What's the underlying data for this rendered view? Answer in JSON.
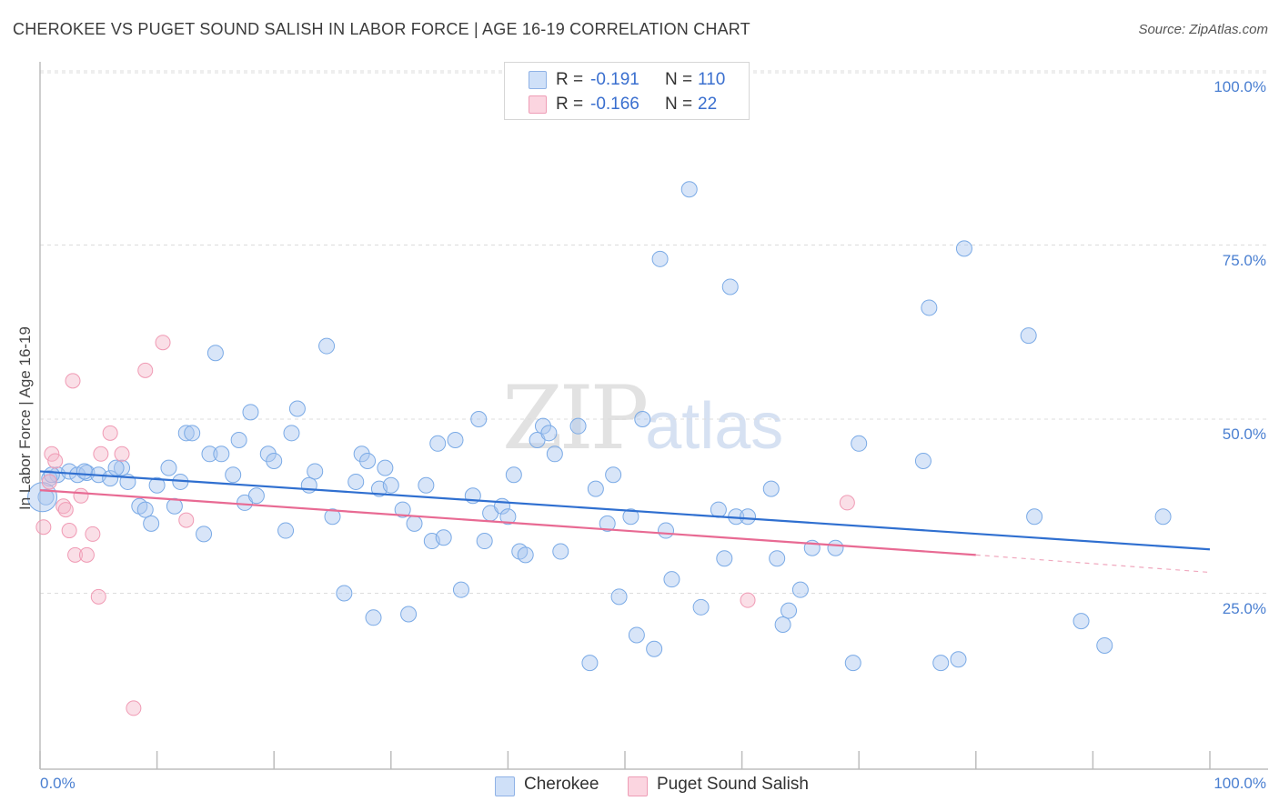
{
  "header": {
    "title": "CHEROKEE VS PUGET SOUND SALISH IN LABOR FORCE | AGE 16-19 CORRELATION CHART",
    "source": "Source: ZipAtlas.com"
  },
  "watermark": {
    "zip": "ZIP",
    "atlas": "atlas"
  },
  "legend": {
    "rows": [
      {
        "r_label": "R =",
        "r_value": "-0.191",
        "n_label": "N =",
        "n_value": "110",
        "color": "#a9c6f0"
      },
      {
        "r_label": "R =",
        "r_value": "-0.166",
        "n_label": "N =",
        "n_value": "22",
        "color": "#f5b8c9"
      }
    ]
  },
  "axes": {
    "ylabel": "In Labor Force | Age 16-19",
    "x_min_label": "0.0%",
    "x_max_label": "100.0%",
    "y_ticks": [
      "100.0%",
      "75.0%",
      "50.0%",
      "25.0%"
    ]
  },
  "bottom_legend": {
    "items": [
      {
        "label": "Cherokee",
        "color": "#a9c6f0"
      },
      {
        "label": "Puget Sound Salish",
        "color": "#f5b8c9"
      }
    ]
  },
  "chart_data": {
    "type": "scatter",
    "xlabel": "",
    "ylabel": "In Labor Force | Age 16-19",
    "xlim": [
      0,
      100
    ],
    "ylim": [
      0,
      100
    ],
    "grid": true,
    "legend_position": "top-center",
    "series": [
      {
        "name": "Cherokee",
        "color": "#7aaae6",
        "trend": {
          "x0": 0,
          "y0": 42.5,
          "x1": 100,
          "y1": 31.3
        },
        "points": [
          [
            0.5,
            38.8
          ],
          [
            1.5,
            42.0
          ],
          [
            2.5,
            42.5
          ],
          [
            3.2,
            42.0
          ],
          [
            4.0,
            42.3
          ],
          [
            5.0,
            42.0
          ],
          [
            6.0,
            41.5
          ],
          [
            7.0,
            43.0
          ],
          [
            7.5,
            41.0
          ],
          [
            8.5,
            37.5
          ],
          [
            9.0,
            37.0
          ],
          [
            9.5,
            35.0
          ],
          [
            10.0,
            40.5
          ],
          [
            11.0,
            43.0
          ],
          [
            11.5,
            37.5
          ],
          [
            12.0,
            41.0
          ],
          [
            12.5,
            48.0
          ],
          [
            13.0,
            48.0
          ],
          [
            14.0,
            33.5
          ],
          [
            14.5,
            45.0
          ],
          [
            15.0,
            59.5
          ],
          [
            15.5,
            45.0
          ],
          [
            16.5,
            42.0
          ],
          [
            17.0,
            47.0
          ],
          [
            17.5,
            38.0
          ],
          [
            18.0,
            51.0
          ],
          [
            18.5,
            39.0
          ],
          [
            19.5,
            45.0
          ],
          [
            20.0,
            44.0
          ],
          [
            21.0,
            34.0
          ],
          [
            21.5,
            48.0
          ],
          [
            22.0,
            51.5
          ],
          [
            23.0,
            40.5
          ],
          [
            23.5,
            42.5
          ],
          [
            24.5,
            60.5
          ],
          [
            25.0,
            36.0
          ],
          [
            26.0,
            25.0
          ],
          [
            27.0,
            41.0
          ],
          [
            27.5,
            45.0
          ],
          [
            28.0,
            44.0
          ],
          [
            28.5,
            21.5
          ],
          [
            29.0,
            40.0
          ],
          [
            29.5,
            43.0
          ],
          [
            30.0,
            40.5
          ],
          [
            31.0,
            37.0
          ],
          [
            31.5,
            22.0
          ],
          [
            32.0,
            35.0
          ],
          [
            33.0,
            40.5
          ],
          [
            33.5,
            32.5
          ],
          [
            34.0,
            46.5
          ],
          [
            34.5,
            33.0
          ],
          [
            35.5,
            47.0
          ],
          [
            36.0,
            25.5
          ],
          [
            37.0,
            39.0
          ],
          [
            37.5,
            50.0
          ],
          [
            38.0,
            32.5
          ],
          [
            38.5,
            36.5
          ],
          [
            39.5,
            37.5
          ],
          [
            40.0,
            36.0
          ],
          [
            40.5,
            42.0
          ],
          [
            41.0,
            31.0
          ],
          [
            41.5,
            30.5
          ],
          [
            42.5,
            47.0
          ],
          [
            43.0,
            49.0
          ],
          [
            43.5,
            48.0
          ],
          [
            44.0,
            45.0
          ],
          [
            44.5,
            31.0
          ],
          [
            46.0,
            49.0
          ],
          [
            47.0,
            15.0
          ],
          [
            47.5,
            40.0
          ],
          [
            48.5,
            35.0
          ],
          [
            49.0,
            42.0
          ],
          [
            49.5,
            24.5
          ],
          [
            50.5,
            36.0
          ],
          [
            51.0,
            19.0
          ],
          [
            51.5,
            50.0
          ],
          [
            52.5,
            17.0
          ],
          [
            53.0,
            73.0
          ],
          [
            53.5,
            34.0
          ],
          [
            54.0,
            27.0
          ],
          [
            55.5,
            83.0
          ],
          [
            56.5,
            23.0
          ],
          [
            58.0,
            37.0
          ],
          [
            58.5,
            30.0
          ],
          [
            59.0,
            69.0
          ],
          [
            59.5,
            36.0
          ],
          [
            60.5,
            36.0
          ],
          [
            62.5,
            40.0
          ],
          [
            63.0,
            30.0
          ],
          [
            63.5,
            20.5
          ],
          [
            64.0,
            22.5
          ],
          [
            65.0,
            25.5
          ],
          [
            66.0,
            31.5
          ],
          [
            68.0,
            31.5
          ],
          [
            69.5,
            15.0
          ],
          [
            70.0,
            46.5
          ],
          [
            75.5,
            44.0
          ],
          [
            76.0,
            66.0
          ],
          [
            77.0,
            15.0
          ],
          [
            78.5,
            15.5
          ],
          [
            79.0,
            74.5
          ],
          [
            84.5,
            62.0
          ],
          [
            85.0,
            36.0
          ],
          [
            89.0,
            21.0
          ],
          [
            91.0,
            17.5
          ],
          [
            96.0,
            36.0
          ],
          [
            0.8,
            41.5
          ],
          [
            1.0,
            42.0
          ],
          [
            6.5,
            43.0
          ],
          [
            3.8,
            42.5
          ]
        ]
      },
      {
        "name": "Puget Sound Salish",
        "color": "#f09ab4",
        "trend": {
          "x0": 0,
          "y0": 39.8,
          "x1": 80,
          "y1": 30.5,
          "dash_to_x": 100,
          "dash_to_y": 28.0
        },
        "points": [
          [
            0.3,
            34.5
          ],
          [
            0.8,
            41.0
          ],
          [
            1.0,
            45.0
          ],
          [
            1.3,
            44.0
          ],
          [
            2.0,
            37.5
          ],
          [
            2.2,
            37.0
          ],
          [
            2.5,
            34.0
          ],
          [
            2.8,
            55.5
          ],
          [
            3.0,
            30.5
          ],
          [
            3.5,
            39.0
          ],
          [
            4.0,
            30.5
          ],
          [
            4.5,
            33.5
          ],
          [
            5.0,
            24.5
          ],
          [
            5.2,
            45.0
          ],
          [
            6.0,
            48.0
          ],
          [
            7.0,
            45.0
          ],
          [
            8.0,
            8.5
          ],
          [
            9.0,
            57.0
          ],
          [
            10.5,
            61.0
          ],
          [
            12.5,
            35.5
          ],
          [
            60.5,
            24.0
          ],
          [
            69.0,
            38.0
          ]
        ]
      }
    ]
  }
}
